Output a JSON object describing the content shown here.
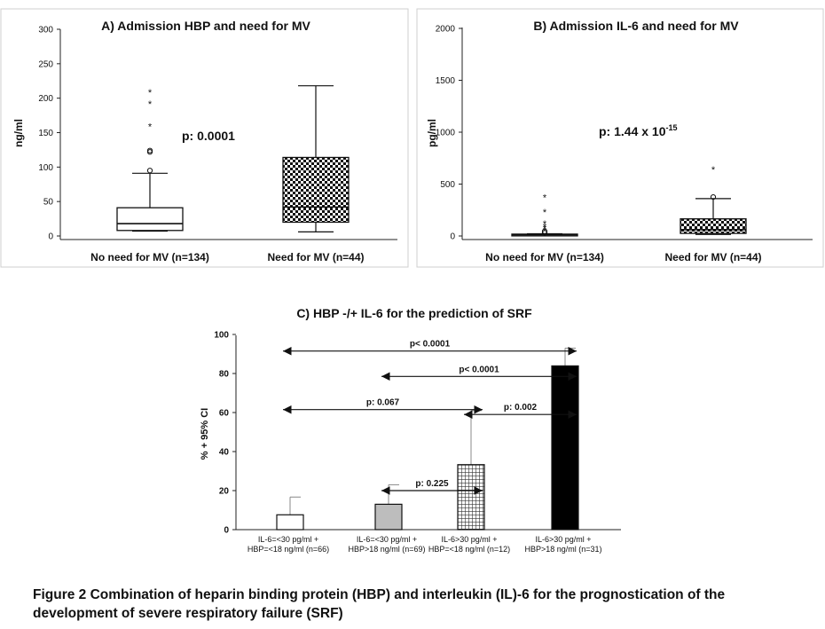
{
  "figure": {
    "caption": "Figure 2 Combination of heparin binding protein (HBP) and interleukin (IL)-6 for the prognostication of the development of severe respiratory failure (SRF)"
  },
  "colors": {
    "axis": "#222222",
    "text": "#111111",
    "box_fill": "#ffffff"
  },
  "chart_data": [
    {
      "id": "A",
      "type": "box",
      "title": "A) Admission HBP and need for MV",
      "ylabel": "ng/ml",
      "ylim": [
        0,
        300
      ],
      "yticks": [
        "0",
        "50",
        "100",
        "150",
        "200",
        "250",
        "300"
      ],
      "categories": [
        "No need for MV (n=134)",
        "Need for MV (n=44)"
      ],
      "annotation": "p: 0.0001",
      "boxes": [
        {
          "whisker_low": 7,
          "q1": 8,
          "median": 18,
          "q3": 41,
          "whisker_high": 91,
          "outliers": [
            95,
            122,
            124,
            160,
            193,
            210
          ],
          "pattern": "plain"
        },
        {
          "whisker_low": 6,
          "q1": 20,
          "median": 42,
          "q3": 114,
          "whisker_high": 218,
          "outliers": [],
          "pattern": "check"
        }
      ]
    },
    {
      "id": "B",
      "type": "box",
      "title": "B) Admission IL-6 and need for MV",
      "ylabel": "pg/ml",
      "ylim": [
        0,
        2000
      ],
      "yticks": [
        "0",
        "500",
        "1000",
        "1500",
        "2000"
      ],
      "categories": [
        "No need for MV (n=134)",
        "Need for MV (n=44)"
      ],
      "annotation": "p: 1.44 x 10",
      "annotation_sup": "-15",
      "boxes": [
        {
          "whisker_low": 2,
          "q1": 5,
          "median": 12,
          "q3": 18,
          "whisker_high": 22,
          "outliers": [
            30,
            45,
            60,
            80,
            100,
            130,
            240,
            380
          ],
          "pattern": "plain"
        },
        {
          "whisker_low": 15,
          "q1": 25,
          "median": 60,
          "q3": 165,
          "whisker_high": 360,
          "outliers": [
            375,
            650
          ],
          "pattern": "check"
        }
      ]
    },
    {
      "id": "C",
      "type": "bar",
      "title": "C) HBP -/+ IL-6 for the prediction of SRF",
      "ylabel": "% + 95% CI",
      "ylim": [
        0,
        100
      ],
      "yticks": [
        "0",
        "20",
        "40",
        "60",
        "80",
        "100"
      ],
      "categories": [
        [
          "IL-6=<30 pg/ml +",
          "HBP=<18 ng/ml (n=66)"
        ],
        [
          "IL-6=<30 pg/ml +",
          "HBP>18 ng/ml (n=69)"
        ],
        [
          "IL-6>30 pg/ml +",
          "HBP=<18 ng/ml (n=12)"
        ],
        [
          "IL-6>30 pg/ml +",
          "HBP>18 ng/ml (n=31)"
        ]
      ],
      "values": [
        7.6,
        13.0,
        33.3,
        83.9
      ],
      "ci_upper": [
        16.7,
        23.0,
        61.0,
        93.0
      ],
      "fills": [
        "white",
        "grey",
        "grid",
        "black"
      ],
      "comparisons": [
        {
          "from": 0,
          "to": 3,
          "level": 91.5,
          "label": "p< 0.0001"
        },
        {
          "from": 1,
          "to": 3,
          "level": 78.5,
          "label": "p< 0.0001"
        },
        {
          "from": 0,
          "to": 2,
          "level": 61.5,
          "label": "p: 0.067"
        },
        {
          "from": 2,
          "to": 3,
          "level": 59.0,
          "label": "p: 0.002"
        },
        {
          "from": 1,
          "to": 2,
          "level": 20.0,
          "label": "p: 0.225"
        }
      ]
    }
  ]
}
